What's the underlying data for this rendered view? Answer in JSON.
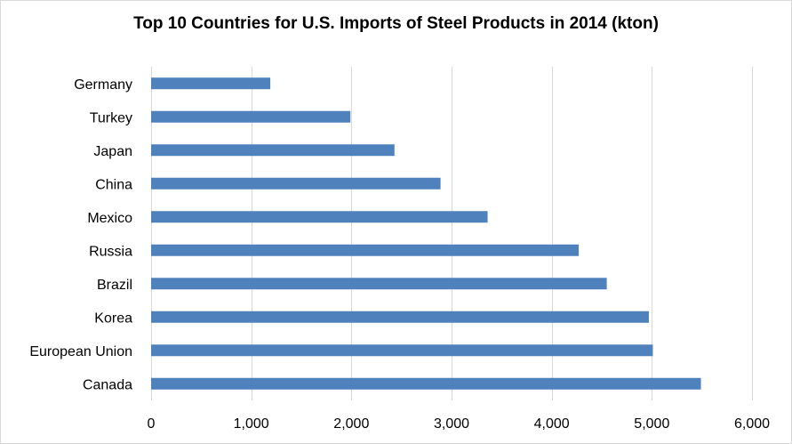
{
  "chart_data": {
    "type": "bar",
    "orientation": "horizontal",
    "title": "Top 10 Countries for U.S. Imports of Steel Products in 2014 (kton)",
    "categories": [
      "Germany",
      "Turkey",
      "Japan",
      "China",
      "Mexico",
      "Russia",
      "Brazil",
      "Korea",
      "European Union",
      "Canada"
    ],
    "values": [
      1190,
      1990,
      2430,
      2890,
      3360,
      4270,
      4550,
      4970,
      5010,
      5490
    ],
    "xlim": [
      0,
      6000
    ],
    "xticks": [
      0,
      1000,
      2000,
      3000,
      4000,
      5000,
      6000
    ],
    "xtick_labels": [
      "0",
      "1,000",
      "2,000",
      "3,000",
      "4,000",
      "5,000",
      "6,000"
    ],
    "xlabel": "",
    "ylabel": "",
    "grid": "vertical major gridlines",
    "legend": "none",
    "bar_color": "#4f81bd",
    "grid_color": "#d9d9d9"
  }
}
